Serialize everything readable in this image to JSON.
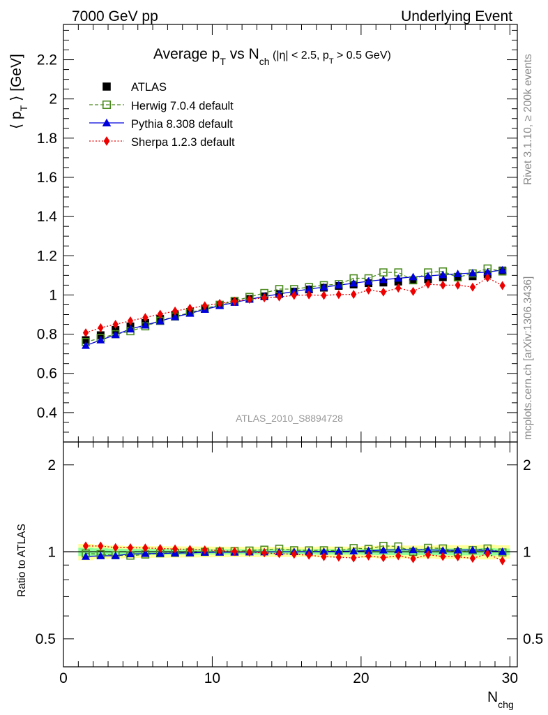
{
  "header": {
    "left": "7000 GeV pp",
    "right": "Underlying Event"
  },
  "side_labels": {
    "rivet": "Rivet 3.1.10, ≥ 200k events",
    "mcplots": "mcplots.cern.ch [arXiv:1306.3436]"
  },
  "chart_data": {
    "type": "scatter",
    "title": {
      "main": "Average p",
      "main_sub": "T",
      "vs": " vs N",
      "vs_sub": "ch",
      "cond_a": " (|η| < 2.5, p",
      "cond_sub": "T",
      "cond_b": " > 0.5 GeV)"
    },
    "analysis_id": "ATLAS_2010_S8894728",
    "xlabel": {
      "main": "N",
      "sub": "chg"
    },
    "ylabel": {
      "open": "⟨ p",
      "sub": "T",
      "close": " ⟩ [GeV]"
    },
    "ratio_ylabel": "Ratio to ATLAS",
    "xlim": [
      0,
      30.5
    ],
    "ylim": [
      0.25,
      2.38
    ],
    "ratio_ylim": [
      0.4,
      2.4
    ],
    "ratio_log": true,
    "x_ticks": [
      "0",
      "10",
      "20",
      "30"
    ],
    "y_ticks": [
      "0.4",
      "0.6",
      "0.8",
      "1",
      "1.2",
      "1.4",
      "1.6",
      "1.8",
      "2",
      "2.2"
    ],
    "ratio_ticks": [
      "0.5",
      "1",
      "2"
    ],
    "x": [
      1.5,
      2.5,
      3.5,
      4.5,
      5.5,
      6.5,
      7.5,
      8.5,
      9.5,
      10.5,
      11.5,
      12.5,
      13.5,
      14.5,
      15.5,
      16.5,
      17.5,
      18.5,
      19.5,
      20.5,
      21.5,
      22.5,
      23.5,
      24.5,
      25.5,
      26.5,
      27.5,
      28.5,
      29.5
    ],
    "legend_position": "top-left",
    "series": [
      {
        "name": "ATLAS",
        "color": "#000000",
        "marker": "filled-square",
        "line": "none",
        "values": [
          0.77,
          0.795,
          0.822,
          0.84,
          0.858,
          0.878,
          0.897,
          0.914,
          0.93,
          0.948,
          0.965,
          0.98,
          0.993,
          1.005,
          1.017,
          1.028,
          1.037,
          1.046,
          1.053,
          1.06,
          1.063,
          1.068,
          1.075,
          1.08,
          1.09,
          1.093,
          1.095,
          1.105,
          1.125
        ],
        "band_half_width": [
          0.05,
          0.045,
          0.042,
          0.04,
          0.04,
          0.04,
          0.04,
          0.04,
          0.04,
          0.04,
          0.04,
          0.04,
          0.04,
          0.04,
          0.04,
          0.04,
          0.045,
          0.045,
          0.045,
          0.05,
          0.055,
          0.055,
          0.055,
          0.055,
          0.06,
          0.06,
          0.06,
          0.065,
          0.06
        ]
      },
      {
        "name": "Herwig 7.0.4 default",
        "color": "#4a8a1e",
        "marker": "open-square",
        "line": "dashed",
        "values": [
          0.76,
          0.78,
          0.8,
          0.815,
          0.84,
          0.868,
          0.89,
          0.91,
          0.93,
          0.95,
          0.97,
          0.99,
          1.01,
          1.03,
          1.03,
          1.04,
          1.05,
          1.055,
          1.085,
          1.085,
          1.115,
          1.115,
          1.075,
          1.115,
          1.12,
          1.09,
          1.11,
          1.135,
          1.12
        ]
      },
      {
        "name": "Pythia 8.308 default",
        "color": "#0000dd",
        "marker": "filled-triangle",
        "line": "solid",
        "values": [
          0.742,
          0.77,
          0.797,
          0.826,
          0.846,
          0.867,
          0.888,
          0.906,
          0.926,
          0.945,
          0.962,
          0.978,
          0.992,
          1.005,
          1.018,
          1.03,
          1.04,
          1.05,
          1.06,
          1.07,
          1.078,
          1.085,
          1.092,
          1.097,
          1.103,
          1.108,
          1.112,
          1.117,
          1.127
        ]
      },
      {
        "name": "Sherpa 1.2.3 default",
        "color": "#ee0000",
        "marker": "filled-diamond",
        "line": "dotted",
        "values": [
          0.807,
          0.833,
          0.85,
          0.868,
          0.885,
          0.902,
          0.918,
          0.932,
          0.945,
          0.957,
          0.968,
          0.978,
          0.985,
          0.99,
          0.998,
          1.0,
          0.998,
          1.002,
          1.003,
          1.025,
          1.015,
          1.035,
          1.018,
          1.055,
          1.05,
          1.05,
          1.04,
          1.088,
          1.048
        ]
      }
    ]
  }
}
